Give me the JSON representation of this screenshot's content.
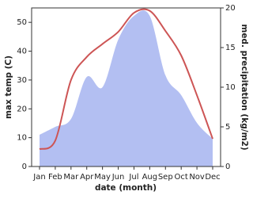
{
  "chart_data": {
    "type": "line",
    "categories": [
      "Jan",
      "Feb",
      "Mar",
      "Apr",
      "May",
      "Jun",
      "Jul",
      "Aug",
      "Sep",
      "Oct",
      "Nov",
      "Dec"
    ],
    "xlabel": "date (month)",
    "ylabel": "max temp (C)",
    "y2label": "med. precipitation (kg/m2)",
    "ylim": [
      0,
      55
    ],
    "yticks": [
      0,
      10,
      20,
      30,
      40,
      50
    ],
    "y2lim": [
      0,
      20
    ],
    "y2ticks": [
      0,
      5,
      10,
      15,
      20
    ],
    "series": [
      {
        "name": "max temp",
        "type": "line",
        "color": "#cd5555",
        "values": [
          6,
          9,
          30,
          38,
          42.5,
          46.7,
          53.3,
          54,
          47,
          38.5,
          24.7,
          9.6
        ]
      },
      {
        "name": "med. precipitation",
        "type": "area",
        "axis": "y2",
        "color": "#b3bff2",
        "values": [
          4,
          5,
          6,
          11.3,
          10,
          16,
          19,
          19,
          11.5,
          9,
          5.5,
          3.5
        ]
      }
    ]
  }
}
